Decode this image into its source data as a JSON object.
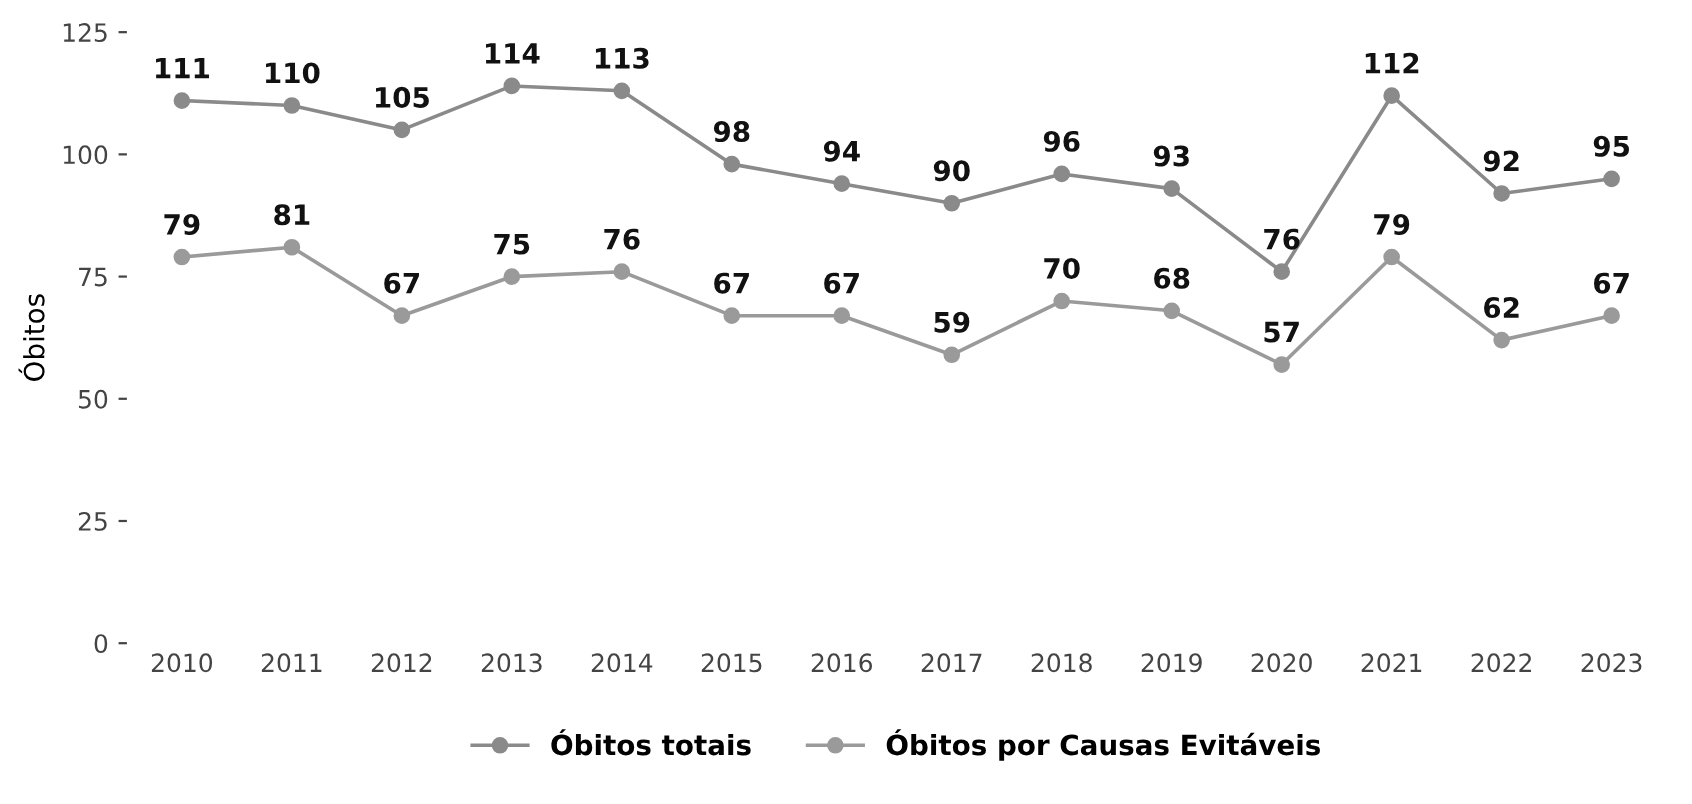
{
  "chart_data": {
    "type": "line",
    "ylabel": "Óbitos",
    "categories": [
      "2010",
      "2011",
      "2012",
      "2013",
      "2014",
      "2015",
      "2016",
      "2017",
      "2018",
      "2019",
      "2020",
      "2021",
      "2022",
      "2023"
    ],
    "series": [
      {
        "name": "Óbitos totais",
        "color": "#8a8a8a",
        "values": [
          111,
          110,
          105,
          114,
          113,
          98,
          94,
          90,
          96,
          93,
          76,
          112,
          92,
          95
        ]
      },
      {
        "name": "Óbitos por Causas Evitáveis",
        "color": "#9a9a9a",
        "values": [
          79,
          81,
          67,
          75,
          76,
          67,
          67,
          59,
          70,
          68,
          57,
          79,
          62,
          67
        ]
      }
    ],
    "ylim": [
      0,
      125
    ],
    "yticks": [
      0,
      25,
      50,
      75,
      100,
      125
    ],
    "grid": false,
    "legend": "bottom",
    "marker": "circle",
    "line_style": "solid",
    "data_labels": true
  }
}
